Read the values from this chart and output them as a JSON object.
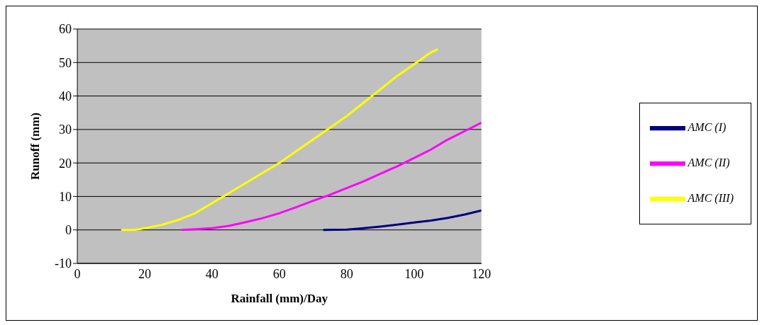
{
  "chart_data": {
    "type": "line",
    "xlabel": "Rainfall (mm)/Day",
    "ylabel": "Runoff (mm)",
    "xlim": [
      0,
      120
    ],
    "xticks": [
      0,
      20,
      40,
      60,
      80,
      100,
      120
    ],
    "ylim": [
      -10,
      60
    ],
    "yticks": [
      -10,
      0,
      10,
      20,
      30,
      40,
      50,
      60
    ],
    "grid": "y",
    "legend": "right",
    "marker": "none",
    "line_style": "solid",
    "series": [
      {
        "name": "AMC (I)",
        "color": "#000080",
        "x": [
          73,
          80,
          85,
          90,
          95,
          100,
          105,
          110,
          115,
          120
        ],
        "values": [
          0,
          0.1,
          0.5,
          1,
          1.6,
          2.2,
          2.8,
          3.6,
          4.6,
          5.8
        ]
      },
      {
        "name": "AMC (II)",
        "color": "#ff00ff",
        "x": [
          31,
          35,
          40,
          45,
          50,
          55,
          60,
          65,
          70,
          75,
          80,
          85,
          90,
          95,
          100,
          105,
          110,
          115,
          120
        ],
        "values": [
          0,
          0.2,
          0.5,
          1.2,
          2.3,
          3.5,
          5,
          6.8,
          8.7,
          10.5,
          12.5,
          14.5,
          16.8,
          19,
          21.5,
          24,
          27,
          29.5,
          32
        ]
      },
      {
        "name": "AMC (III)",
        "color": "#ffff00",
        "x": [
          13,
          17,
          20,
          25,
          30,
          35,
          40,
          45,
          50,
          55,
          60,
          65,
          70,
          75,
          80,
          85,
          90,
          95,
          100,
          105,
          107
        ],
        "values": [
          0,
          0,
          0.5,
          1.5,
          3,
          5,
          8,
          11,
          14,
          17,
          20,
          23.5,
          27,
          30.5,
          34,
          38,
          42,
          46,
          49.5,
          53,
          54
        ]
      }
    ]
  }
}
